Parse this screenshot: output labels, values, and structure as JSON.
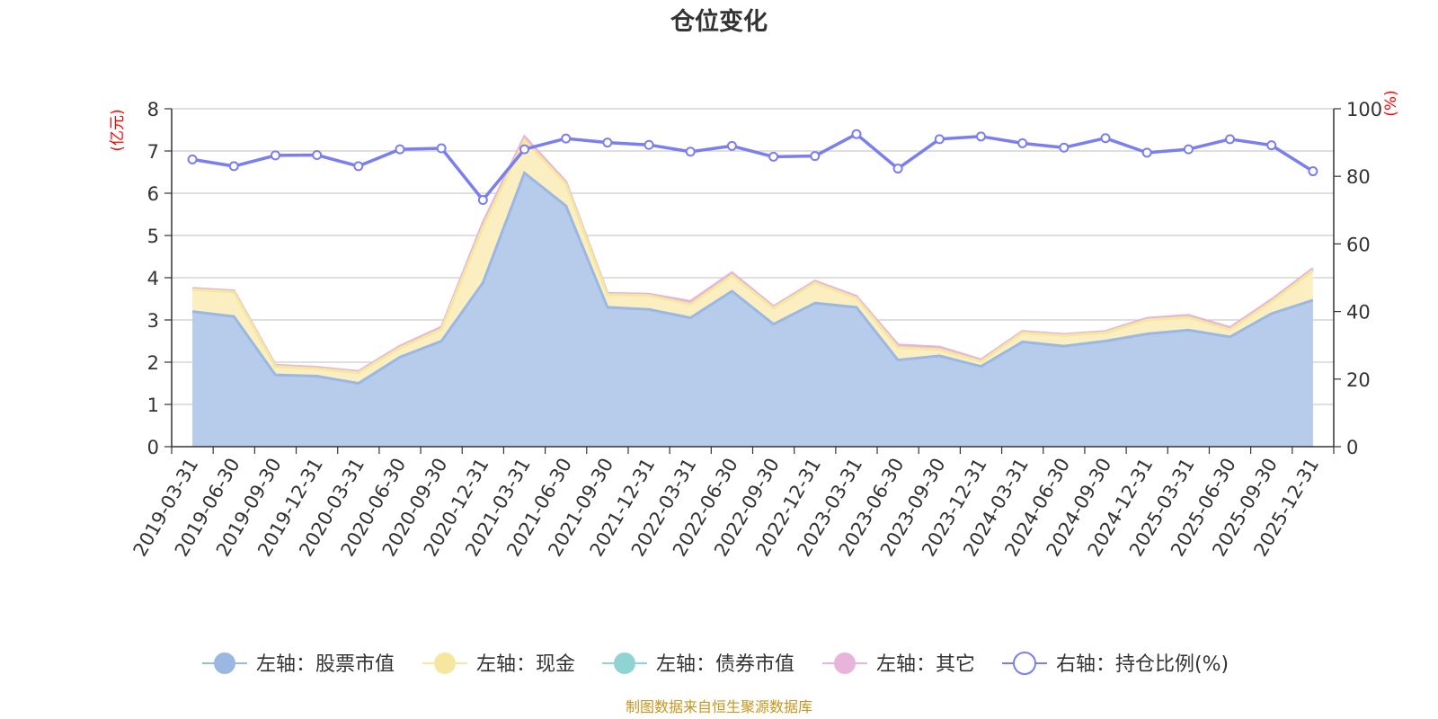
{
  "chart_data": {
    "type": "area",
    "title": "仓位变化",
    "left_axis_unit": "(亿元)",
    "right_axis_unit": "(%)",
    "left_ylim": [
      0,
      8
    ],
    "left_yticks": [
      0,
      1,
      2,
      3,
      4,
      5,
      6,
      7,
      8
    ],
    "right_ylim": [
      0,
      100
    ],
    "right_yticks": [
      0,
      20,
      40,
      60,
      80,
      100
    ],
    "grid": true,
    "legend_position": "bottom",
    "x": [
      "2019-03-31",
      "2019-06-30",
      "2019-09-30",
      "2019-12-31",
      "2020-03-31",
      "2020-06-30",
      "2020-09-30",
      "2020-12-31",
      "2021-03-31",
      "2021-06-30",
      "2021-09-30",
      "2021-12-31",
      "2022-03-31",
      "2022-06-30",
      "2022-09-30",
      "2022-12-31",
      "2023-03-31",
      "2023-06-30",
      "2023-09-30",
      "2023-12-31",
      "2024-03-31",
      "2024-06-30",
      "2024-09-30",
      "2024-12-31",
      "2025-03-31",
      "2025-06-30",
      "2025-09-30",
      "2025-12-31"
    ],
    "series": [
      {
        "name": "左轴：股票市值",
        "axis": "left",
        "kind": "stacked-area",
        "color": "#9bb8e2",
        "fill": "#b7cbea",
        "values": [
          3.2,
          3.08,
          1.7,
          1.67,
          1.5,
          2.12,
          2.5,
          3.88,
          6.48,
          5.7,
          3.3,
          3.25,
          3.05,
          3.68,
          2.9,
          3.4,
          3.3,
          2.05,
          2.15,
          1.9,
          2.48,
          2.38,
          2.5,
          2.67,
          2.76,
          2.6,
          3.15,
          3.47
        ]
      },
      {
        "name": "左轴：现金",
        "axis": "left",
        "kind": "stacked-area",
        "color": "#f5e6a0",
        "fill": "#fbefc2",
        "values": [
          0.52,
          0.58,
          0.2,
          0.18,
          0.25,
          0.22,
          0.28,
          1.32,
          0.78,
          0.52,
          0.3,
          0.33,
          0.32,
          0.38,
          0.38,
          0.48,
          0.22,
          0.3,
          0.15,
          0.12,
          0.22,
          0.25,
          0.2,
          0.33,
          0.3,
          0.17,
          0.28,
          0.7
        ]
      },
      {
        "name": "左轴：债券市值",
        "axis": "left",
        "kind": "stacked-area",
        "color": "#8fd3d3",
        "fill": "#bfe6e6",
        "values": [
          0,
          0,
          0,
          0,
          0,
          0,
          0,
          0,
          0,
          0,
          0,
          0,
          0,
          0,
          0,
          0,
          0,
          0,
          0,
          0,
          0,
          0,
          0,
          0,
          0,
          0,
          0,
          0
        ]
      },
      {
        "name": "左轴：其它",
        "axis": "left",
        "kind": "stacked-area",
        "color": "#e8b4da",
        "fill": "#f0cbe6",
        "values": [
          0.03,
          0.03,
          0.03,
          0.03,
          0.03,
          0.04,
          0.05,
          0.1,
          0.08,
          0.05,
          0.03,
          0.03,
          0.07,
          0.06,
          0.04,
          0.04,
          0.04,
          0.06,
          0.06,
          0.04,
          0.03,
          0.03,
          0.03,
          0.04,
          0.05,
          0.05,
          0.05,
          0.05
        ]
      },
      {
        "name": "右轴：持仓比例(%)",
        "axis": "right",
        "kind": "line",
        "color": "#7b7ef0",
        "values": [
          85,
          83,
          86.2,
          86.3,
          83,
          88,
          88.3,
          73,
          88,
          91.2,
          90,
          89.3,
          87.3,
          89,
          85.8,
          86,
          92.5,
          82.3,
          91,
          91.8,
          89.8,
          88.5,
          91.3,
          87,
          88,
          91,
          89.2,
          81.5
        ]
      }
    ],
    "source_note": "制图数据来自恒生聚源数据库"
  }
}
